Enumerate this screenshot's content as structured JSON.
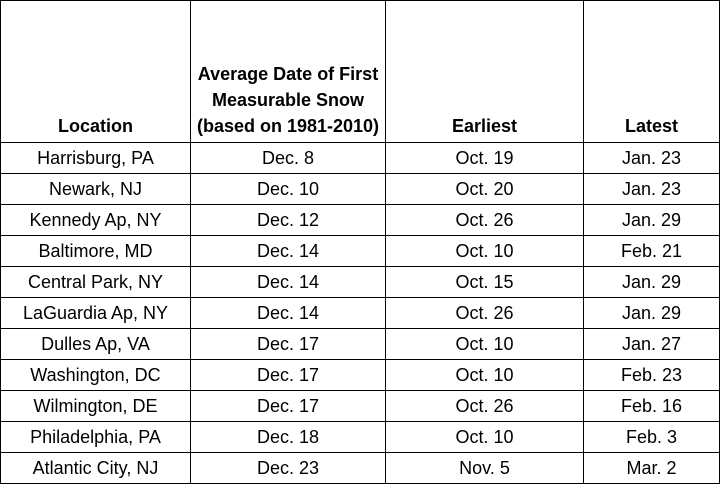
{
  "table": {
    "headers": [
      "Location",
      "Average Date of First Measurable Snow (based on 1981-2010)",
      "Earliest",
      "Latest"
    ],
    "rows": [
      [
        "Harrisburg, PA",
        "Dec. 8",
        "Oct. 19",
        "Jan. 23"
      ],
      [
        "Newark, NJ",
        "Dec. 10",
        "Oct. 20",
        "Jan. 23"
      ],
      [
        "Kennedy Ap, NY",
        "Dec. 12",
        "Oct. 26",
        "Jan. 29"
      ],
      [
        "Baltimore, MD",
        "Dec. 14",
        "Oct. 10",
        "Feb. 21"
      ],
      [
        "Central Park, NY",
        "Dec. 14",
        "Oct. 15",
        "Jan. 29"
      ],
      [
        "LaGuardia Ap, NY",
        "Dec. 14",
        "Oct. 26",
        "Jan. 29"
      ],
      [
        "Dulles Ap, VA",
        "Dec. 17",
        "Oct. 10",
        "Jan. 27"
      ],
      [
        "Washington, DC",
        "Dec. 17",
        "Oct. 10",
        "Feb. 23"
      ],
      [
        "Wilmington, DE",
        "Dec. 17",
        "Oct. 26",
        "Feb. 16"
      ],
      [
        "Philadelphia, PA",
        "Dec. 18",
        "Oct. 10",
        "Feb. 3"
      ],
      [
        "Atlantic City, NJ",
        "Dec. 23",
        "Nov. 5",
        "Mar. 2"
      ]
    ]
  }
}
